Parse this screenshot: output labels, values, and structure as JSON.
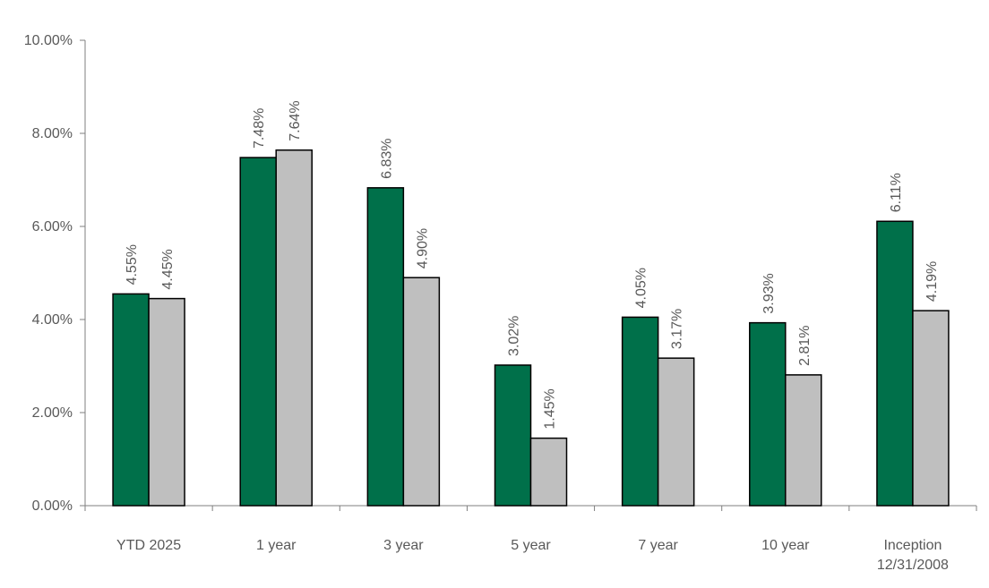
{
  "chart_data": {
    "type": "bar",
    "categories": [
      [
        "YTD 2025"
      ],
      [
        "1 year"
      ],
      [
        "3 year"
      ],
      [
        "5 year"
      ],
      [
        "7 year"
      ],
      [
        "10 year"
      ],
      [
        "Inception",
        "12/31/2008"
      ]
    ],
    "series": [
      {
        "values": [
          4.55,
          7.48,
          6.83,
          3.02,
          4.05,
          3.93,
          6.11
        ],
        "color": "#00704A"
      },
      {
        "values": [
          4.45,
          7.64,
          4.9,
          1.45,
          3.17,
          2.81,
          4.19
        ],
        "color": "#BFBFBF"
      }
    ],
    "data_labels": [
      [
        "4.55%",
        "7.48%",
        "6.83%",
        "3.02%",
        "4.05%",
        "3.93%",
        "6.11%"
      ],
      [
        "4.45%",
        "7.64%",
        "4.90%",
        "1.45%",
        "3.17%",
        "2.81%",
        "4.19%"
      ]
    ],
    "y_ticks": [
      0,
      2,
      4,
      6,
      8,
      10
    ],
    "y_tick_labels": [
      "0.00%",
      "2.00%",
      "4.00%",
      "6.00%",
      "8.00%",
      "10.00%"
    ],
    "ylim": [
      0,
      10
    ],
    "grid": false,
    "legend": "none",
    "title": "",
    "xlabel": "",
    "ylabel": "",
    "axis_color": "#7F7F7F",
    "bar_outline_color": "#000000"
  }
}
